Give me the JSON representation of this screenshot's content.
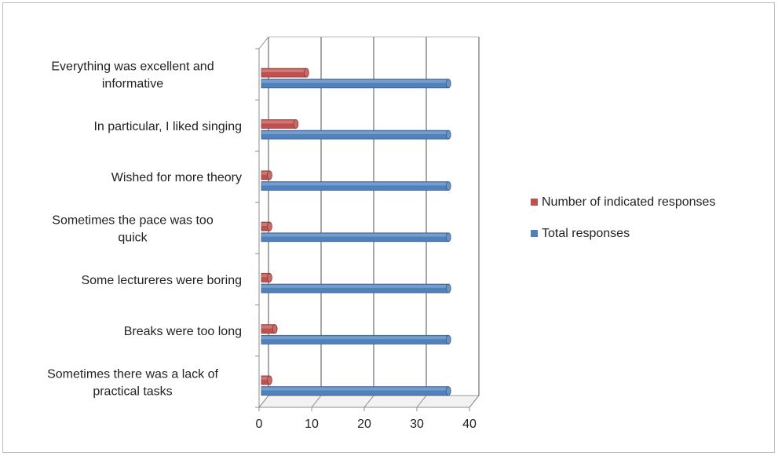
{
  "chart_data": {
    "type": "bar",
    "orientation": "horizontal",
    "title": "",
    "xlabel": "",
    "ylabel": "",
    "categories": [
      "Everything was excellent and informative",
      "In particular, I liked singing",
      "Wished for more theory",
      "Sometimes the pace was too quick",
      "Some lectureres were boring",
      "Breaks were too long",
      "Sometimes there was a lack of practical tasks"
    ],
    "category_lines": [
      [
        "Everything was excellent and",
        "informative"
      ],
      [
        "In particular, I liked singing"
      ],
      [
        "Wished for more theory"
      ],
      [
        "Sometimes the pace was too",
        "quick"
      ],
      [
        "Some lectureres were boring"
      ],
      [
        "Breaks were too long"
      ],
      [
        "Sometimes there was a lack of",
        "practical tasks"
      ]
    ],
    "series": [
      {
        "name": "Number of indicated responses",
        "color": "#c0504d",
        "values": [
          9,
          7,
          2,
          2,
          2,
          3,
          2
        ]
      },
      {
        "name": "Total responses",
        "color": "#4f81bd",
        "values": [
          36,
          36,
          36,
          36,
          36,
          36,
          36
        ]
      }
    ],
    "xlim": [
      0,
      40
    ],
    "xticks": [
      0,
      10,
      20,
      30,
      40
    ],
    "grid": true,
    "legend_position": "right"
  }
}
